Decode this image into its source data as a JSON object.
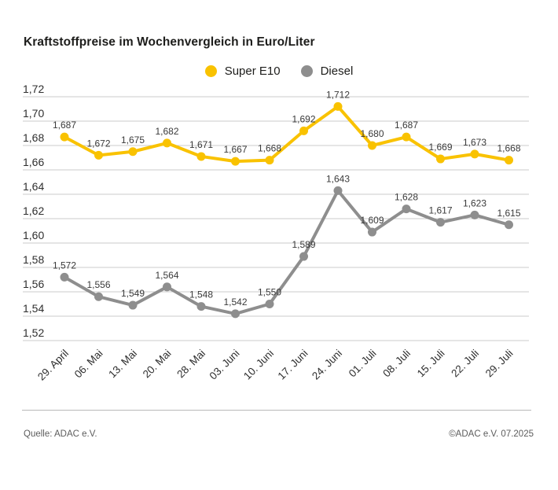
{
  "title": "Kraftstoffpreise im Wochenvergleich in Euro/Liter",
  "legend": {
    "items": [
      {
        "label": "Super E10",
        "color": "#F9C200"
      },
      {
        "label": "Diesel",
        "color": "#8E8E8E"
      }
    ]
  },
  "chart_data": {
    "type": "line",
    "title": "Kraftstoffpreise im Wochenvergleich in Euro/Liter",
    "categories": [
      "29. April",
      "06. Mai",
      "13. Mai",
      "20. Mai",
      "28. Mai",
      "03. Juni",
      "10. Juni",
      "17. Juni",
      "24. Juni",
      "01. Juli",
      "08. Juli",
      "15. Juli",
      "22. Juli",
      "29. Juli"
    ],
    "series": [
      {
        "name": "Super E10",
        "color": "#F9C200",
        "values": [
          1.687,
          1.672,
          1.675,
          1.682,
          1.671,
          1.667,
          1.668,
          1.692,
          1.712,
          1.68,
          1.687,
          1.669,
          1.673,
          1.668
        ],
        "labels": [
          "1,687",
          "1,672",
          "1,675",
          "1,682",
          "1,671",
          "1,667",
          "1,668",
          "1,692",
          "1,712",
          "1,680",
          "1,687",
          "1,669",
          "1,673",
          "1,668"
        ]
      },
      {
        "name": "Diesel",
        "color": "#8E8E8E",
        "values": [
          1.572,
          1.556,
          1.549,
          1.564,
          1.548,
          1.542,
          1.55,
          1.589,
          1.643,
          1.609,
          1.628,
          1.617,
          1.623,
          1.615
        ],
        "labels": [
          "1,572",
          "1,556",
          "1,549",
          "1,564",
          "1,548",
          "1,542",
          "1,550",
          "1,589",
          "1,643",
          "1,609",
          "1,628",
          "1,617",
          "1,623",
          "1,615"
        ]
      }
    ],
    "xlabel": "",
    "ylabel": "",
    "ylim": [
      1.52,
      1.72
    ],
    "ytick_step": 0.02,
    "yticks": [
      "1,72",
      "1,70",
      "1,68",
      "1,66",
      "1,64",
      "1,62",
      "1,60",
      "1,58",
      "1,56",
      "1,54",
      "1,52"
    ],
    "grid": true,
    "legend_position": "top-center"
  },
  "footer": {
    "source": "Quelle: ADAC e.V.",
    "copyright": "©ADAC e.V. 07.2025"
  },
  "colors": {
    "grid": "#CBCBCB",
    "text": "#2F2F2F",
    "title": "#1D1D1B",
    "footer_text": "#5C5C5C"
  }
}
